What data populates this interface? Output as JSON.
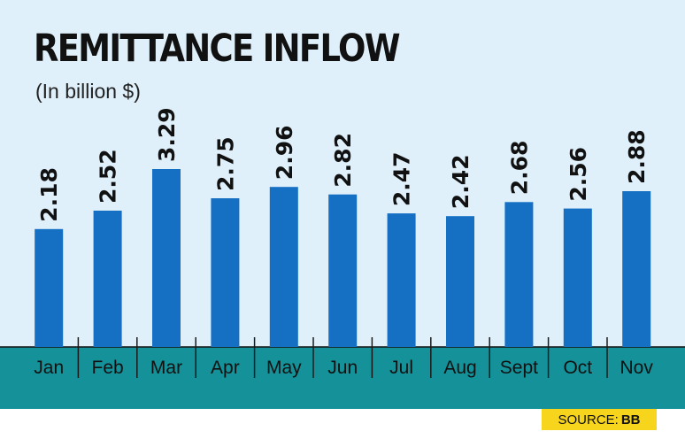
{
  "header": {
    "title": "REMITTANCE INFLOW",
    "subtitle": "(In billion $)"
  },
  "footer": {
    "source_label": "SOURCE:",
    "source_value": "BB"
  },
  "colors": {
    "background": "#dff0fb",
    "bar": "#1570c4",
    "axis_band": "#149199",
    "source_badge": "#f7d51d"
  },
  "chart_data": {
    "type": "bar",
    "title": "REMITTANCE INFLOW",
    "subtitle": "(In billion $)",
    "categories": [
      "Jan",
      "Feb",
      "Mar",
      "Apr",
      "May",
      "Jun",
      "Jul",
      "Aug",
      "Sept",
      "Oct",
      "Nov"
    ],
    "values": [
      2.18,
      2.52,
      3.29,
      2.75,
      2.96,
      2.82,
      2.47,
      2.42,
      2.68,
      2.56,
      2.88
    ],
    "data_labels": [
      "2.18",
      "2.52",
      "3.29",
      "2.75",
      "2.96",
      "2.82",
      "2.47",
      "2.42",
      "2.68",
      "2.56",
      "2.88"
    ],
    "ylim": [
      0,
      3.29
    ],
    "grid": false,
    "legend": "none"
  }
}
